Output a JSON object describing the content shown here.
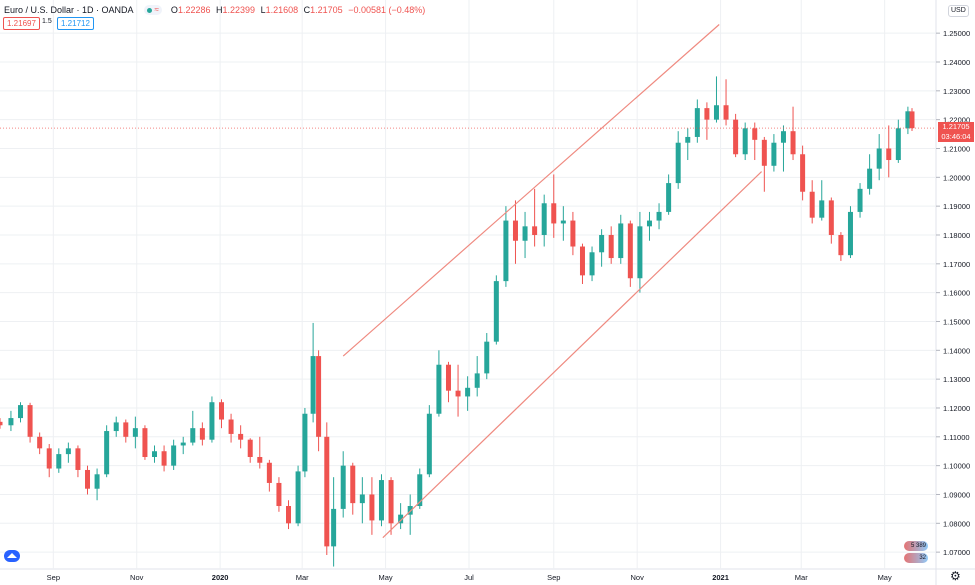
{
  "header": {
    "symbol": "Euro / U.S. Dollar · 1D · OANDA",
    "open": "1.22286",
    "high": "1.22399",
    "low": "1.21608",
    "close": "1.21705",
    "change": "−0.00581 (−0.48%)",
    "open_key": "O",
    "high_key": "H",
    "low_key": "L",
    "close_key": "C"
  },
  "trade": {
    "sell_price": "1.21697",
    "spread": "1.5",
    "buy_price": "1.21712"
  },
  "scale": {
    "currency": "USD",
    "last_price": "1.21705",
    "countdown": "03:46:04"
  },
  "notifications": {
    "top": "5 389",
    "bottom": "32"
  },
  "colors": {
    "up": "#26a69a",
    "down": "#ef5350",
    "channel": "#ef8a80",
    "grid": "#eef0f3",
    "last_price_bg": "#ef5350"
  },
  "icons": [
    "settings-gear-icon",
    "tradingview-logo-icon",
    "market-status-dot-icon",
    "waves-icon"
  ],
  "chart_data": {
    "type": "candlestick",
    "instrument": "EUR/USD",
    "interval": "1D",
    "y_ticks": [
      1.07,
      1.08,
      1.09,
      1.1,
      1.11,
      1.12,
      1.13,
      1.14,
      1.15,
      1.16,
      1.17,
      1.18,
      1.19,
      1.2,
      1.21,
      1.22,
      1.23,
      1.24,
      1.25
    ],
    "y_tick_labels": [
      "1.07000",
      "1.08000",
      "1.09000",
      "1.10000",
      "1.11000",
      "1.12000",
      "1.13000",
      "1.14000",
      "1.15000",
      "1.16000",
      "1.17000",
      "1.18000",
      "1.19000",
      "1.20000",
      "1.21000",
      "1.22000",
      "1.23000",
      "1.24000",
      "1.25000"
    ],
    "x_labels": [
      "Sep",
      "Nov",
      "2020",
      "Mar",
      "May",
      "Jul",
      "Sep",
      "Nov",
      "2021",
      "Mar",
      "May"
    ],
    "x_label_dates": [
      "2019-09-01",
      "2019-11-01",
      "2020-01-01",
      "2020-03-01",
      "2020-05-01",
      "2020-07-01",
      "2020-09-01",
      "2020-11-01",
      "2021-01-01",
      "2021-03-01",
      "2021-05-01"
    ],
    "date_range": [
      "2019-07-24",
      "2021-05-21"
    ],
    "y_range": [
      1.0645,
      1.2615
    ],
    "last_price": 1.21705,
    "ohlc": [
      [
        "2019-07-24",
        1.1152,
        1.1165,
        1.1128,
        1.114
      ],
      [
        "2019-08-01",
        1.114,
        1.119,
        1.112,
        1.1165
      ],
      [
        "2019-08-08",
        1.1165,
        1.122,
        1.115,
        1.121
      ],
      [
        "2019-08-15",
        1.121,
        1.1218,
        1.108,
        1.11
      ],
      [
        "2019-08-22",
        1.11,
        1.1115,
        1.104,
        1.106
      ],
      [
        "2019-08-29",
        1.106,
        1.1075,
        1.096,
        1.099
      ],
      [
        "2019-09-05",
        1.099,
        1.106,
        1.0975,
        1.104
      ],
      [
        "2019-09-12",
        1.104,
        1.108,
        1.101,
        1.106
      ],
      [
        "2019-09-19",
        1.106,
        1.107,
        1.096,
        1.0985
      ],
      [
        "2019-09-26",
        1.0985,
        1.1,
        1.09,
        1.092
      ],
      [
        "2019-10-03",
        1.092,
        1.099,
        1.088,
        1.097
      ],
      [
        "2019-10-10",
        1.097,
        1.114,
        1.096,
        1.112
      ],
      [
        "2019-10-17",
        1.112,
        1.117,
        1.11,
        1.115
      ],
      [
        "2019-10-24",
        1.115,
        1.116,
        1.108,
        1.11
      ],
      [
        "2019-10-31",
        1.11,
        1.117,
        1.106,
        1.113
      ],
      [
        "2019-11-07",
        1.113,
        1.114,
        1.102,
        1.103
      ],
      [
        "2019-11-14",
        1.103,
        1.107,
        1.101,
        1.105
      ],
      [
        "2019-11-21",
        1.105,
        1.107,
        1.098,
        1.1
      ],
      [
        "2019-11-28",
        1.1,
        1.109,
        1.0985,
        1.107
      ],
      [
        "2019-12-05",
        1.107,
        1.11,
        1.104,
        1.108
      ],
      [
        "2019-12-12",
        1.108,
        1.119,
        1.107,
        1.113
      ],
      [
        "2019-12-19",
        1.113,
        1.115,
        1.107,
        1.109
      ],
      [
        "2019-12-26",
        1.109,
        1.124,
        1.108,
        1.122
      ],
      [
        "2020-01-02",
        1.122,
        1.123,
        1.113,
        1.116
      ],
      [
        "2020-01-09",
        1.116,
        1.118,
        1.108,
        1.111
      ],
      [
        "2020-01-16",
        1.111,
        1.114,
        1.106,
        1.109
      ],
      [
        "2020-01-23",
        1.109,
        1.1095,
        1.101,
        1.103
      ],
      [
        "2020-01-30",
        1.103,
        1.11,
        1.099,
        1.101
      ],
      [
        "2020-02-06",
        1.101,
        1.102,
        1.091,
        1.094
      ],
      [
        "2020-02-13",
        1.094,
        1.096,
        1.084,
        1.086
      ],
      [
        "2020-02-20",
        1.086,
        1.088,
        1.078,
        1.08
      ],
      [
        "2020-02-27",
        1.08,
        1.1,
        1.079,
        1.098
      ],
      [
        "2020-03-03",
        1.098,
        1.12,
        1.096,
        1.118
      ],
      [
        "2020-03-09",
        1.118,
        1.1495,
        1.115,
        1.138
      ],
      [
        "2020-03-13",
        1.138,
        1.14,
        1.105,
        1.11
      ],
      [
        "2020-03-19",
        1.11,
        1.115,
        1.069,
        1.072
      ],
      [
        "2020-03-24",
        1.072,
        1.096,
        1.065,
        1.085
      ],
      [
        "2020-03-31",
        1.085,
        1.105,
        1.082,
        1.1
      ],
      [
        "2020-04-07",
        1.1,
        1.101,
        1.083,
        1.087
      ],
      [
        "2020-04-14",
        1.087,
        1.096,
        1.08,
        1.09
      ],
      [
        "2020-04-21",
        1.09,
        1.096,
        1.076,
        1.081
      ],
      [
        "2020-04-28",
        1.081,
        1.097,
        1.079,
        1.095
      ],
      [
        "2020-05-05",
        1.095,
        1.096,
        1.076,
        1.08
      ],
      [
        "2020-05-12",
        1.08,
        1.087,
        1.078,
        1.083
      ],
      [
        "2020-05-19",
        1.083,
        1.09,
        1.076,
        1.086
      ],
      [
        "2020-05-26",
        1.086,
        1.099,
        1.085,
        1.097
      ],
      [
        "2020-06-02",
        1.097,
        1.121,
        1.096,
        1.118
      ],
      [
        "2020-06-09",
        1.118,
        1.14,
        1.117,
        1.135
      ],
      [
        "2020-06-16",
        1.135,
        1.136,
        1.122,
        1.126
      ],
      [
        "2020-06-23",
        1.126,
        1.135,
        1.117,
        1.124
      ],
      [
        "2020-06-30",
        1.124,
        1.131,
        1.119,
        1.127
      ],
      [
        "2020-07-07",
        1.127,
        1.138,
        1.124,
        1.132
      ],
      [
        "2020-07-14",
        1.132,
        1.146,
        1.13,
        1.143
      ],
      [
        "2020-07-21",
        1.143,
        1.166,
        1.142,
        1.164
      ],
      [
        "2020-07-28",
        1.164,
        1.19,
        1.162,
        1.185
      ],
      [
        "2020-08-04",
        1.185,
        1.192,
        1.17,
        1.178
      ],
      [
        "2020-08-11",
        1.178,
        1.188,
        1.172,
        1.183
      ],
      [
        "2020-08-18",
        1.183,
        1.196,
        1.176,
        1.18
      ],
      [
        "2020-08-25",
        1.18,
        1.194,
        1.176,
        1.191
      ],
      [
        "2020-09-01",
        1.191,
        1.201,
        1.179,
        1.184
      ],
      [
        "2020-09-08",
        1.184,
        1.19,
        1.178,
        1.185
      ],
      [
        "2020-09-15",
        1.185,
        1.188,
        1.173,
        1.176
      ],
      [
        "2020-09-22",
        1.176,
        1.177,
        1.163,
        1.166
      ],
      [
        "2020-09-29",
        1.166,
        1.176,
        1.164,
        1.174
      ],
      [
        "2020-10-06",
        1.174,
        1.182,
        1.169,
        1.18
      ],
      [
        "2020-10-13",
        1.18,
        1.183,
        1.17,
        1.172
      ],
      [
        "2020-10-20",
        1.172,
        1.187,
        1.17,
        1.184
      ],
      [
        "2020-10-27",
        1.184,
        1.185,
        1.162,
        1.165
      ],
      [
        "2020-11-03",
        1.165,
        1.188,
        1.16,
        1.183
      ],
      [
        "2020-11-10",
        1.183,
        1.188,
        1.178,
        1.185
      ],
      [
        "2020-11-17",
        1.185,
        1.191,
        1.182,
        1.188
      ],
      [
        "2020-11-24",
        1.188,
        1.201,
        1.187,
        1.198
      ],
      [
        "2020-12-01",
        1.198,
        1.216,
        1.196,
        1.212
      ],
      [
        "2020-12-08",
        1.212,
        1.217,
        1.206,
        1.214
      ],
      [
        "2020-12-15",
        1.214,
        1.227,
        1.212,
        1.224
      ],
      [
        "2020-12-22",
        1.224,
        1.226,
        1.213,
        1.22
      ],
      [
        "2020-12-29",
        1.22,
        1.235,
        1.219,
        1.225
      ],
      [
        "2021-01-05",
        1.225,
        1.234,
        1.218,
        1.22
      ],
      [
        "2021-01-12",
        1.22,
        1.222,
        1.207,
        1.208
      ],
      [
        "2021-01-19",
        1.208,
        1.219,
        1.206,
        1.217
      ],
      [
        "2021-01-26",
        1.217,
        1.219,
        1.206,
        1.213
      ],
      [
        "2021-02-02",
        1.213,
        1.214,
        1.195,
        1.204
      ],
      [
        "2021-02-09",
        1.204,
        1.215,
        1.202,
        1.212
      ],
      [
        "2021-02-16",
        1.212,
        1.218,
        1.202,
        1.216
      ],
      [
        "2021-02-23",
        1.216,
        1.2245,
        1.206,
        1.208
      ],
      [
        "2021-03-02",
        1.208,
        1.211,
        1.192,
        1.195
      ],
      [
        "2021-03-09",
        1.195,
        1.199,
        1.184,
        1.186
      ],
      [
        "2021-03-16",
        1.186,
        1.199,
        1.185,
        1.192
      ],
      [
        "2021-03-23",
        1.192,
        1.193,
        1.177,
        1.18
      ],
      [
        "2021-03-30",
        1.18,
        1.181,
        1.171,
        1.173
      ],
      [
        "2021-04-06",
        1.173,
        1.19,
        1.172,
        1.188
      ],
      [
        "2021-04-13",
        1.188,
        1.198,
        1.186,
        1.196
      ],
      [
        "2021-04-20",
        1.196,
        1.208,
        1.194,
        1.203
      ],
      [
        "2021-04-27",
        1.203,
        1.215,
        1.199,
        1.21
      ],
      [
        "2021-05-04",
        1.21,
        1.218,
        1.2,
        1.206
      ],
      [
        "2021-05-11",
        1.206,
        1.22,
        1.205,
        1.217
      ],
      [
        "2021-05-18",
        1.217,
        1.2245,
        1.215,
        1.2229
      ],
      [
        "2021-05-21",
        1.22286,
        1.22399,
        1.21608,
        1.21705
      ]
    ],
    "trendlines": [
      {
        "from": [
          "2020-03-31",
          1.138
        ],
        "to": [
          "2020-12-31",
          1.253
        ]
      },
      {
        "from": [
          "2020-04-29",
          1.075
        ],
        "to": [
          "2021-01-31",
          1.202
        ]
      }
    ],
    "grid": true
  }
}
